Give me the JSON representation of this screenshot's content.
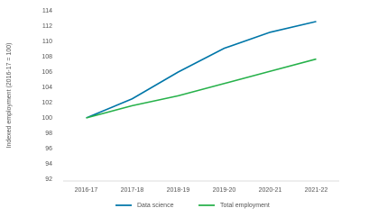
{
  "chart_data": {
    "type": "line",
    "y_label": "Indexed employment (2016-17 = 100)",
    "categories": [
      "2016-17",
      "2017-18",
      "2018-19",
      "2019-20",
      "2020-21",
      "2021-22"
    ],
    "series": [
      {
        "name": "Data science",
        "color": "#0076a8",
        "values": [
          100,
          102.5,
          106,
          109.1,
          111.2,
          112.6
        ]
      },
      {
        "name": "Total employment",
        "color": "#26b14a",
        "values": [
          100,
          101.6,
          102.9,
          104.5,
          106.1,
          107.7
        ]
      }
    ],
    "ylim": [
      92,
      114
    ],
    "yticks": [
      92,
      94,
      96,
      98,
      100,
      102,
      104,
      106,
      108,
      110,
      112,
      114
    ],
    "grid": false,
    "legend": "bottom"
  }
}
